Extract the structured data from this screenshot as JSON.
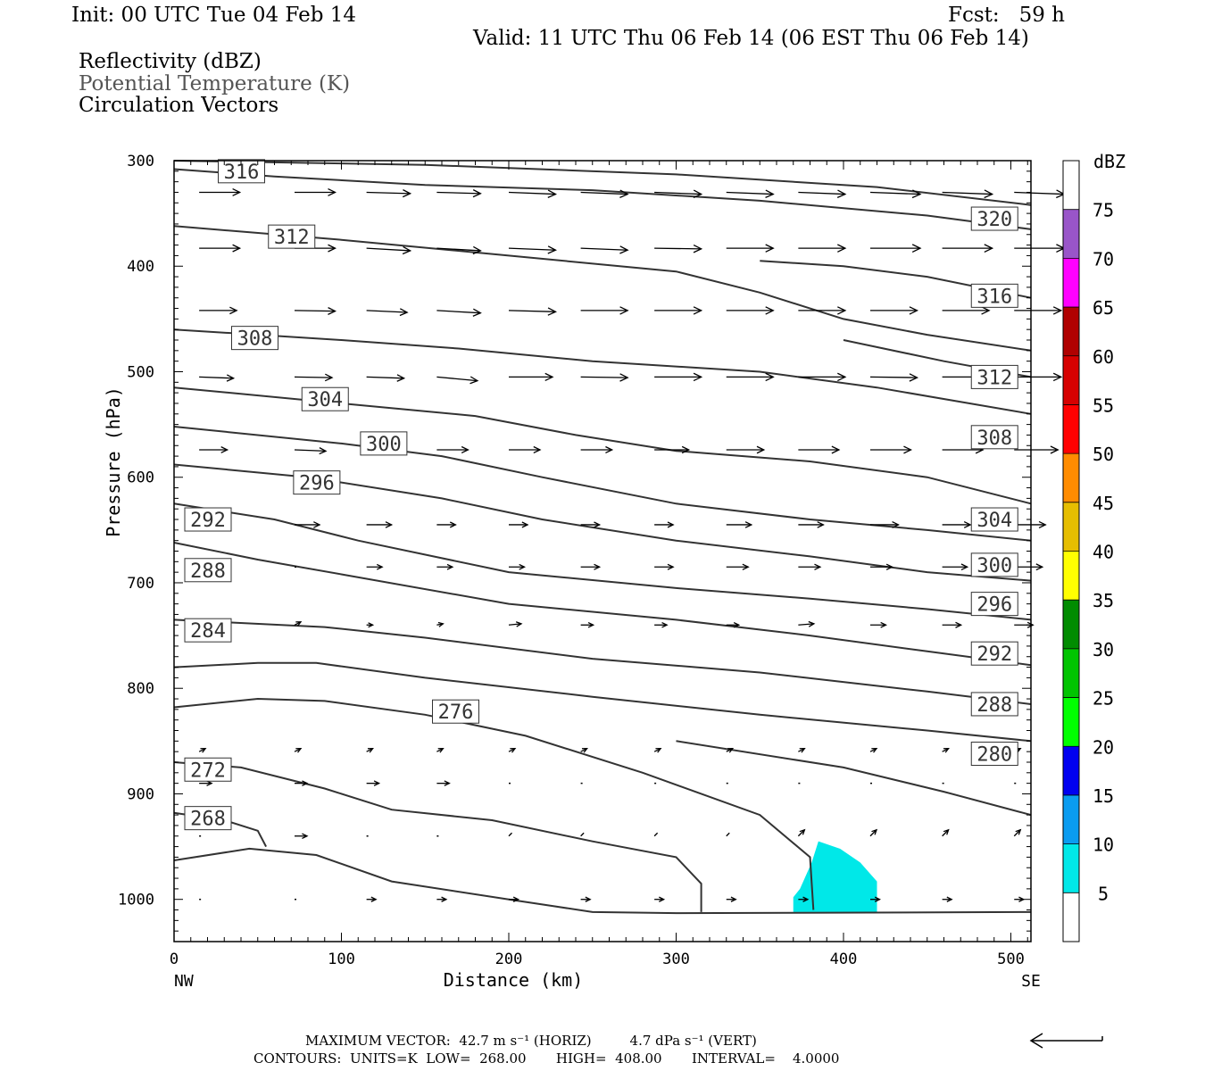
{
  "header": {
    "init": "Init: 00 UTC Tue 04 Feb 14",
    "fcst": "Fcst:   59 h",
    "valid": "Valid: 11 UTC Thu 06 Feb 14 (06 EST Thu 06 Feb 14)",
    "field1": "Reflectivity (dBZ)",
    "field2": "Potential Temperature (K)",
    "field3": "Circulation Vectors"
  },
  "footer": {
    "max_vector": "MAXIMUM VECTOR:  42.7 m s⁻¹ (HORIZ)         4.7 dPa s⁻¹ (VERT)",
    "contours": "CONTOURS:  UNITS=K  LOW=  268.00       HIGH=  408.00       INTERVAL=    4.0000"
  },
  "colorbar": {
    "title": "dBZ",
    "levels": [
      5,
      10,
      15,
      20,
      25,
      30,
      35,
      40,
      45,
      50,
      55,
      60,
      65,
      70,
      75
    ],
    "colors": [
      "#00e8e8",
      "#0a9cf0",
      "#0000f0",
      "#00ff00",
      "#00c400",
      "#008c00",
      "#ffff00",
      "#e6be00",
      "#ff8c00",
      "#ff0000",
      "#d60000",
      "#b00000",
      "#ff00ff",
      "#9955c9",
      "#ffffff"
    ]
  },
  "chart_data": {
    "type": "line",
    "title": "",
    "xlabel": "Distance (km)",
    "ylabel": "Pressure (hPa)",
    "xlim": [
      0,
      512
    ],
    "ylim": [
      1040,
      300
    ],
    "x_ticks": [
      0,
      100,
      200,
      300,
      400,
      500
    ],
    "y_ticks": [
      300,
      400,
      500,
      600,
      700,
      800,
      900,
      1000
    ],
    "x_end_labels": [
      "NW",
      "SE"
    ],
    "grid": false,
    "isentropes": [
      {
        "label": "316",
        "pts": [
          [
            0,
            308
          ],
          [
            60,
            315
          ],
          [
            150,
            323
          ],
          [
            250,
            328
          ],
          [
            350,
            338
          ],
          [
            450,
            352
          ],
          [
            512,
            365
          ]
        ]
      },
      {
        "label": "320",
        "pts": [
          [
            0,
            300
          ],
          [
            150,
            304
          ],
          [
            300,
            313
          ],
          [
            420,
            325
          ],
          [
            512,
            342
          ]
        ]
      },
      {
        "label": "312",
        "pts": [
          [
            0,
            362
          ],
          [
            100,
            375
          ],
          [
            200,
            390
          ],
          [
            300,
            405
          ],
          [
            350,
            425
          ],
          [
            400,
            450
          ],
          [
            450,
            465
          ],
          [
            512,
            480
          ]
        ]
      },
      {
        "label": "316",
        "pts": [
          [
            350,
            395
          ],
          [
            400,
            400
          ],
          [
            450,
            410
          ],
          [
            512,
            430
          ]
        ]
      },
      {
        "label": "308",
        "pts": [
          [
            0,
            460
          ],
          [
            100,
            470
          ],
          [
            170,
            478
          ],
          [
            250,
            490
          ],
          [
            350,
            500
          ],
          [
            420,
            515
          ],
          [
            512,
            540
          ]
        ]
      },
      {
        "label": "312",
        "pts": [
          [
            400,
            470
          ],
          [
            460,
            490
          ],
          [
            512,
            505
          ]
        ]
      },
      {
        "label": "304",
        "pts": [
          [
            0,
            515
          ],
          [
            100,
            530
          ],
          [
            180,
            542
          ],
          [
            240,
            560
          ],
          [
            300,
            575
          ],
          [
            380,
            585
          ],
          [
            450,
            600
          ],
          [
            512,
            625
          ]
        ]
      },
      {
        "label": "300",
        "pts": [
          [
            0,
            552
          ],
          [
            100,
            568
          ],
          [
            160,
            580
          ],
          [
            220,
            600
          ],
          [
            300,
            625
          ],
          [
            380,
            640
          ],
          [
            450,
            650
          ],
          [
            512,
            660
          ]
        ]
      },
      {
        "label": "296",
        "pts": [
          [
            0,
            588
          ],
          [
            80,
            600
          ],
          [
            160,
            620
          ],
          [
            220,
            640
          ],
          [
            300,
            660
          ],
          [
            380,
            675
          ],
          [
            450,
            690
          ],
          [
            512,
            698
          ]
        ]
      },
      {
        "label": "292",
        "pts": [
          [
            0,
            625
          ],
          [
            60,
            640
          ],
          [
            110,
            660
          ],
          [
            200,
            690
          ],
          [
            300,
            705
          ],
          [
            380,
            715
          ],
          [
            450,
            725
          ],
          [
            512,
            735
          ]
        ]
      },
      {
        "label": "288",
        "pts": [
          [
            0,
            662
          ],
          [
            50,
            678
          ],
          [
            100,
            692
          ],
          [
            200,
            720
          ],
          [
            300,
            735
          ],
          [
            380,
            750
          ],
          [
            450,
            765
          ],
          [
            512,
            778
          ]
        ]
      },
      {
        "label": "284",
        "pts": [
          [
            0,
            735
          ],
          [
            90,
            742
          ],
          [
            150,
            752
          ],
          [
            250,
            772
          ],
          [
            350,
            785
          ],
          [
            450,
            803
          ],
          [
            512,
            815
          ]
        ]
      },
      {
        "label": "280",
        "pts": [
          [
            0,
            780
          ],
          [
            50,
            776
          ],
          [
            85,
            776
          ],
          [
            150,
            790
          ],
          [
            250,
            808
          ],
          [
            350,
            825
          ],
          [
            450,
            840
          ],
          [
            512,
            850
          ]
        ]
      },
      {
        "label": "276",
        "pts": [
          [
            0,
            818
          ],
          [
            50,
            810
          ],
          [
            90,
            812
          ],
          [
            150,
            825
          ],
          [
            210,
            845
          ],
          [
            280,
            880
          ],
          [
            350,
            920
          ],
          [
            380,
            960
          ],
          [
            382,
            1010
          ]
        ]
      },
      {
        "label": "280",
        "pts": [
          [
            300,
            850
          ],
          [
            400,
            875
          ],
          [
            460,
            898
          ],
          [
            512,
            920
          ]
        ]
      },
      {
        "label": "272",
        "pts": [
          [
            0,
            870
          ],
          [
            40,
            875
          ],
          [
            90,
            895
          ],
          [
            130,
            915
          ],
          [
            190,
            925
          ],
          [
            250,
            945
          ],
          [
            300,
            960
          ],
          [
            315,
            985
          ],
          [
            315,
            1012
          ]
        ]
      },
      {
        "label": "268",
        "pts": [
          [
            0,
            918
          ],
          [
            30,
            925
          ],
          [
            50,
            935
          ],
          [
            55,
            950
          ]
        ]
      },
      {
        "label": "",
        "pts": [
          [
            0,
            963
          ],
          [
            45,
            952
          ],
          [
            85,
            958
          ],
          [
            130,
            983
          ],
          [
            200,
            1000
          ],
          [
            250,
            1012
          ],
          [
            300,
            1013
          ],
          [
            512,
            1012
          ]
        ]
      }
    ],
    "reflectivity_cells": [
      {
        "dbz": 5,
        "pts": [
          [
            374,
            990
          ],
          [
            381,
            965
          ],
          [
            385,
            945
          ],
          [
            398,
            952
          ],
          [
            410,
            965
          ],
          [
            420,
            983
          ],
          [
            420,
            1012
          ],
          [
            370,
            1012
          ],
          [
            370,
            998
          ]
        ]
      }
    ],
    "vectors": [
      {
        "pressure": 330,
        "x": [
          15,
          72,
          115,
          157,
          200,
          243,
          287,
          330,
          373,
          416,
          459,
          502
        ],
        "u": [
          0.65,
          0.65,
          0.7,
          0.7,
          0.75,
          0.75,
          0.75,
          0.75,
          0.75,
          0.8,
          0.8,
          0.8
        ],
        "w": [
          0,
          0,
          -0.02,
          -0.02,
          -0.03,
          -0.03,
          -0.03,
          -0.03,
          -0.03,
          -0.03,
          -0.03,
          -0.03
        ]
      },
      {
        "pressure": 383,
        "x": [
          15,
          72,
          115,
          157,
          200,
          243,
          287,
          330,
          373,
          416,
          459,
          502
        ],
        "u": [
          0.65,
          0.65,
          0.7,
          0.7,
          0.75,
          0.75,
          0.75,
          0.75,
          0.75,
          0.8,
          0.8,
          0.8
        ],
        "w": [
          0,
          0,
          -0.04,
          -0.04,
          -0.03,
          -0.03,
          -0.01,
          0,
          0,
          0,
          0,
          0
        ]
      },
      {
        "pressure": 442,
        "x": [
          15,
          72,
          115,
          157,
          200,
          243,
          287,
          330,
          373,
          416,
          459,
          502
        ],
        "u": [
          0.6,
          0.65,
          0.65,
          0.7,
          0.75,
          0.75,
          0.75,
          0.75,
          0.75,
          0.75,
          0.75,
          0.75
        ],
        "w": [
          0,
          -0.01,
          -0.03,
          -0.04,
          -0.02,
          0,
          0,
          0,
          0,
          0,
          0,
          0
        ]
      },
      {
        "pressure": 505,
        "x": [
          15,
          72,
          115,
          157,
          200,
          243,
          287,
          330,
          373,
          416,
          459,
          502
        ],
        "u": [
          0.55,
          0.6,
          0.6,
          0.65,
          0.7,
          0.75,
          0.75,
          0.75,
          0.75,
          0.75,
          0.75,
          0.75
        ],
        "w": [
          -0.02,
          -0.01,
          -0.02,
          -0.06,
          0,
          -0.01,
          0,
          0,
          0,
          -0.01,
          0,
          0
        ]
      },
      {
        "pressure": 574,
        "x": [
          15,
          72,
          115,
          157,
          200,
          243,
          287,
          330,
          373,
          416,
          459,
          502
        ],
        "u": [
          0.45,
          0.5,
          0.5,
          0.5,
          0.5,
          0.5,
          0.55,
          0.6,
          0.65,
          0.65,
          0.65,
          0.7
        ],
        "w": [
          0,
          -0.02,
          -0.02,
          0,
          0,
          0,
          0,
          0,
          0,
          0,
          0,
          0
        ]
      },
      {
        "pressure": 645,
        "x": [
          15,
          72,
          115,
          157,
          200,
          243,
          287,
          330,
          373,
          416,
          459,
          502
        ],
        "u": [
          0.3,
          0.4,
          0.4,
          0.3,
          0.3,
          0.3,
          0.3,
          0.4,
          0.4,
          0.45,
          0.45,
          0.5
        ],
        "w": [
          0,
          0,
          0,
          0,
          0,
          0,
          0,
          0,
          0,
          0,
          0,
          0
        ]
      },
      {
        "pressure": 685,
        "x": [
          72,
          115,
          157,
          200,
          243,
          287,
          330,
          373,
          416,
          459,
          502
        ],
        "u": [
          0.0,
          0.25,
          0.25,
          0.25,
          0.3,
          0.3,
          0.35,
          0.35,
          0.35,
          0.4,
          0.45
        ],
        "w": [
          0,
          0,
          0,
          0,
          0,
          0,
          0,
          0,
          0,
          0,
          0
        ]
      },
      {
        "pressure": 740,
        "x": [
          72,
          115,
          157,
          200,
          243,
          287,
          330,
          373,
          416,
          459,
          502
        ],
        "u": [
          0.1,
          0.1,
          0.1,
          0.2,
          0.2,
          0.2,
          0.2,
          0.25,
          0.25,
          0.3,
          0.3
        ],
        "w": [
          0.05,
          0,
          0.02,
          0.02,
          0,
          0,
          0,
          0.02,
          0,
          0,
          0
        ]
      },
      {
        "pressure": 860,
        "x": [
          15,
          72,
          115,
          157,
          200,
          243,
          287,
          330,
          373,
          416,
          459,
          502
        ],
        "u": [
          0.1,
          0.1,
          0.1,
          0.1,
          0.1,
          0.1,
          0.1,
          0.1,
          0.1,
          0.1,
          0.1,
          0.1
        ],
        "w": [
          0.05,
          0.05,
          0.05,
          0.05,
          0.05,
          0.05,
          0.05,
          0.05,
          0.05,
          0.05,
          0.05,
          0.05
        ]
      },
      {
        "pressure": 890,
        "x": [
          15,
          72,
          115,
          157,
          200,
          243,
          287,
          330,
          373,
          416,
          459,
          502
        ],
        "u": [
          0.2,
          0.2,
          0.2,
          0.2,
          0,
          0,
          0,
          0,
          0,
          0,
          0,
          0
        ],
        "w": [
          0,
          0,
          0,
          0,
          0,
          0,
          0,
          0,
          0,
          0,
          0,
          0
        ]
      },
      {
        "pressure": 940,
        "x": [
          15,
          72,
          115,
          157,
          200,
          243,
          287,
          330,
          373,
          416,
          459,
          502
        ],
        "u": [
          0,
          0.2,
          0,
          0,
          0.05,
          0.05,
          0.05,
          0.05,
          0.1,
          0.1,
          0.1,
          0.1
        ],
        "w": [
          0,
          0,
          0,
          0,
          0.05,
          0.05,
          0.05,
          0.05,
          0.1,
          0.1,
          0.1,
          0.1
        ]
      },
      {
        "pressure": 1000,
        "x": [
          15,
          72,
          115,
          157,
          200,
          243,
          287,
          330,
          373,
          416,
          459,
          502
        ],
        "u": [
          0,
          0,
          0.15,
          0.15,
          0.15,
          0.15,
          0.15,
          0.15,
          0.15,
          0.15,
          0.15,
          0.15
        ],
        "w": [
          0,
          0,
          0,
          0,
          0,
          0,
          0,
          0,
          0,
          0,
          0,
          0
        ]
      }
    ],
    "scale_arrow": "left"
  }
}
